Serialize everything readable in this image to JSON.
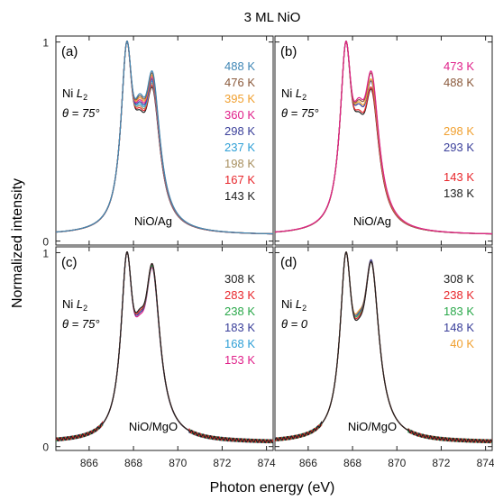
{
  "figure": {
    "title": "3 ML NiO",
    "xlabel": "Photon energy (eV)",
    "ylabel": "Normalized intensity"
  },
  "chart_data": [
    {
      "panel": "(a)",
      "type": "line",
      "element": "Ni",
      "edge": "2",
      "angle": "θ = 75°",
      "sample": "NiO/Ag",
      "xlim": [
        864.5,
        874.3
      ],
      "ylim": [
        -0.02,
        1.03
      ],
      "xticks": [
        866,
        868,
        870,
        872,
        874
      ],
      "yticks": [
        "0",
        "1"
      ],
      "peak1": {
        "x": 867.7,
        "y": 1.0
      },
      "series": [
        {
          "name": "488 K",
          "color": "#3f86b5",
          "valley": 0.74,
          "peak2": 0.85
        },
        {
          "name": "476 K",
          "color": "#8b5a3c",
          "valley": 0.73,
          "peak2": 0.84
        },
        {
          "name": "395 K",
          "color": "#f0a030",
          "valley": 0.72,
          "peak2": 0.83
        },
        {
          "name": "360 K",
          "color": "#e0218a",
          "valley": 0.71,
          "peak2": 0.82
        },
        {
          "name": "298 K",
          "color": "#3a3f9a",
          "valley": 0.7,
          "peak2": 0.81
        },
        {
          "name": "237 K",
          "color": "#2e9fd6",
          "valley": 0.69,
          "peak2": 0.8
        },
        {
          "name": "198 K",
          "color": "#a89060",
          "valley": 0.68,
          "peak2": 0.79
        },
        {
          "name": "167 K",
          "color": "#e8272c",
          "valley": 0.67,
          "peak2": 0.78
        },
        {
          "name": "143 K",
          "color": "#222222",
          "valley": 0.66,
          "peak2": 0.77
        }
      ]
    },
    {
      "panel": "(b)",
      "type": "line",
      "element": "Ni",
      "edge": "2",
      "angle": "θ = 75°",
      "sample": "NiO/Ag",
      "xlim": [
        864.5,
        874.3
      ],
      "ylim": [
        -0.02,
        1.03
      ],
      "xticks": [
        866,
        868,
        870,
        872,
        874
      ],
      "yticks": [
        "0",
        "1"
      ],
      "peak1": {
        "x": 867.7,
        "y": 1.0
      },
      "series": [
        {
          "name": "473 K",
          "color": "#e0218a",
          "valley": 0.72,
          "peak2": 0.85
        },
        {
          "name": "488 K",
          "color": "#8b5a3c",
          "valley": 0.71,
          "peak2": 0.84
        },
        {
          "name": "298 K",
          "color": "#f0a030",
          "valley": 0.7,
          "peak2": 0.81
        },
        {
          "name": "293 K",
          "color": "#3a3f9a",
          "valley": 0.69,
          "peak2": 0.8
        },
        {
          "name": "143 K",
          "color": "#e8272c",
          "valley": 0.66,
          "peak2": 0.77
        },
        {
          "name": "138 K",
          "color": "#222222",
          "valley": 0.65,
          "peak2": 0.76
        }
      ]
    },
    {
      "panel": "(c)",
      "type": "line",
      "element": "Ni",
      "edge": "2",
      "angle": "θ = 75°",
      "sample": "NiO/MgO",
      "xlim": [
        864.5,
        874.3
      ],
      "ylim": [
        -0.02,
        1.03
      ],
      "xticks": [
        866,
        868,
        870,
        872,
        874
      ],
      "yticks": [
        "0",
        "1"
      ],
      "peak1": {
        "x": 867.7,
        "y": 1.0
      },
      "series": [
        {
          "name": "308 K",
          "color": "#222222",
          "valley": 0.71,
          "peak2": 0.94
        },
        {
          "name": "283 K",
          "color": "#e8272c",
          "valley": 0.7,
          "peak2": 0.94
        },
        {
          "name": "238 K",
          "color": "#2aa84a",
          "valley": 0.7,
          "peak2": 0.93
        },
        {
          "name": "183 K",
          "color": "#3a3f9a",
          "valley": 0.69,
          "peak2": 0.93
        },
        {
          "name": "168 K",
          "color": "#2e9fd6",
          "valley": 0.69,
          "peak2": 0.93
        },
        {
          "name": "153 K",
          "color": "#e0218a",
          "valley": 0.68,
          "peak2": 0.92
        }
      ]
    },
    {
      "panel": "(d)",
      "type": "line",
      "element": "Ni",
      "edge": "2",
      "angle": "θ = 0",
      "sample": "NiO/MgO",
      "xlim": [
        864.5,
        874.3
      ],
      "ylim": [
        -0.02,
        1.03
      ],
      "xticks": [
        866,
        868,
        870,
        872,
        874
      ],
      "yticks": [
        "0",
        "1"
      ],
      "peak1": {
        "x": 867.7,
        "y": 1.0
      },
      "series": [
        {
          "name": "308 K",
          "color": "#222222",
          "valley": 0.66,
          "peak2": 0.95
        },
        {
          "name": "238 K",
          "color": "#e8272c",
          "valley": 0.67,
          "peak2": 0.95
        },
        {
          "name": "183 K",
          "color": "#2aa84a",
          "valley": 0.68,
          "peak2": 0.95
        },
        {
          "name": "148 K",
          "color": "#3a3f9a",
          "valley": 0.69,
          "peak2": 0.96
        },
        {
          "name": "40 K",
          "color": "#f0a030",
          "valley": 0.7,
          "peak2": 0.96
        }
      ]
    }
  ]
}
